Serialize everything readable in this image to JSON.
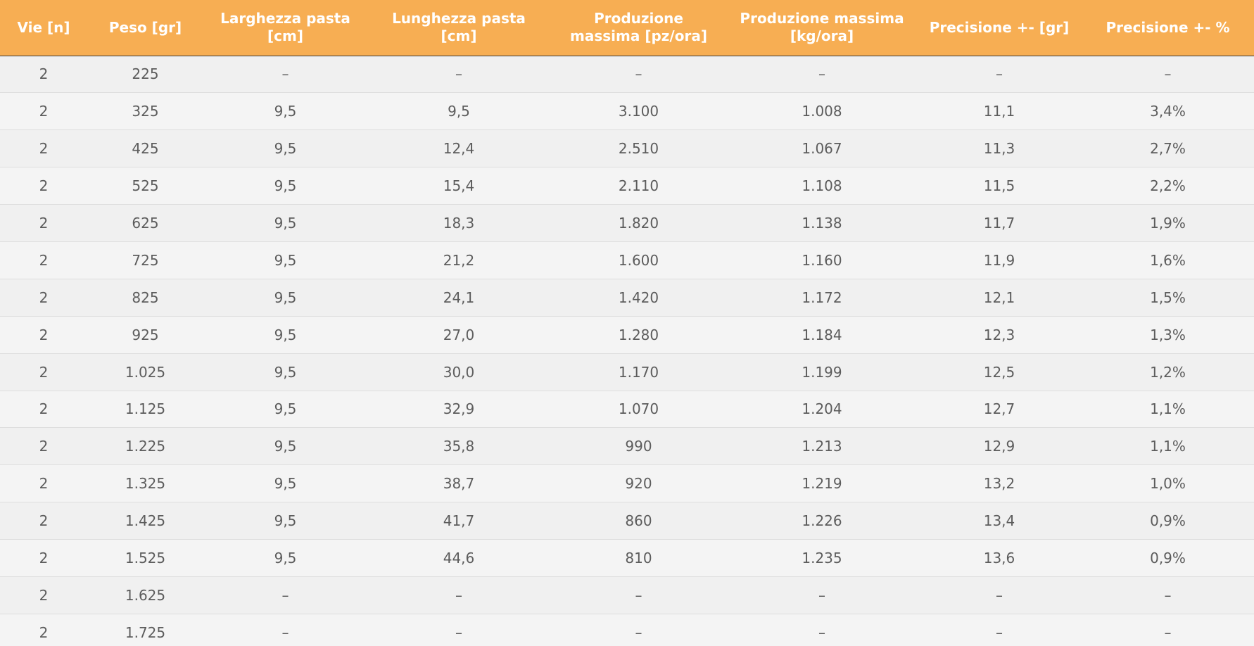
{
  "colors": {
    "header_background": "#f7ae53",
    "header_text": "#ffffff",
    "cell_text": "#5c5c5c",
    "row_background": "#f0f0f0"
  },
  "table": {
    "headers": [
      "Vie [n]",
      "Peso [gr]",
      "Larghezza pasta [cm]",
      "Lunghezza pasta [cm]",
      "Produzione massima [pz/ora]",
      "Produzione massima [kg/ora]",
      "Precisione +- [gr]",
      "Precisione +- %"
    ],
    "rows": [
      [
        "2",
        "225",
        "–",
        "–",
        "–",
        "–",
        "–",
        "–"
      ],
      [
        "2",
        "325",
        "9,5",
        "9,5",
        "3.100",
        "1.008",
        "11,1",
        "3,4%"
      ],
      [
        "2",
        "425",
        "9,5",
        "12,4",
        "2.510",
        "1.067",
        "11,3",
        "2,7%"
      ],
      [
        "2",
        "525",
        "9,5",
        "15,4",
        "2.110",
        "1.108",
        "11,5",
        "2,2%"
      ],
      [
        "2",
        "625",
        "9,5",
        "18,3",
        "1.820",
        "1.138",
        "11,7",
        "1,9%"
      ],
      [
        "2",
        "725",
        "9,5",
        "21,2",
        "1.600",
        "1.160",
        "11,9",
        "1,6%"
      ],
      [
        "2",
        "825",
        "9,5",
        "24,1",
        "1.420",
        "1.172",
        "12,1",
        "1,5%"
      ],
      [
        "2",
        "925",
        "9,5",
        "27,0",
        "1.280",
        "1.184",
        "12,3",
        "1,3%"
      ],
      [
        "2",
        "1.025",
        "9,5",
        "30,0",
        "1.170",
        "1.199",
        "12,5",
        "1,2%"
      ],
      [
        "2",
        "1.125",
        "9,5",
        "32,9",
        "1.070",
        "1.204",
        "12,7",
        "1,1%"
      ],
      [
        "2",
        "1.225",
        "9,5",
        "35,8",
        "990",
        "1.213",
        "12,9",
        "1,1%"
      ],
      [
        "2",
        "1.325",
        "9,5",
        "38,7",
        "920",
        "1.219",
        "13,2",
        "1,0%"
      ],
      [
        "2",
        "1.425",
        "9,5",
        "41,7",
        "860",
        "1.226",
        "13,4",
        "0,9%"
      ],
      [
        "2",
        "1.525",
        "9,5",
        "44,6",
        "810",
        "1.235",
        "13,6",
        "0,9%"
      ],
      [
        "2",
        "1.625",
        "–",
        "–",
        "–",
        "–",
        "–",
        "–"
      ],
      [
        "2",
        "1.725",
        "–",
        "–",
        "–",
        "–",
        "–",
        "–"
      ]
    ]
  }
}
